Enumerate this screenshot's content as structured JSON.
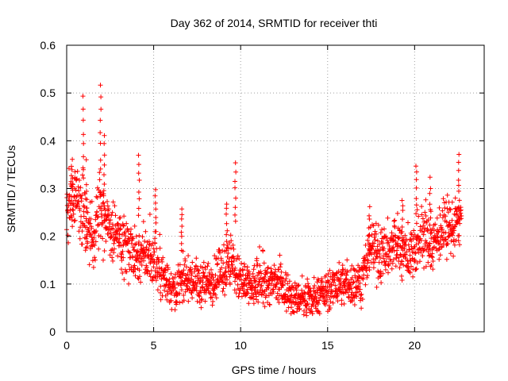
{
  "chart_data": {
    "type": "scatter",
    "title": "Day 362 of 2014, SRMTID for receiver thti",
    "xlabel": "GPS time / hours",
    "ylabel": "SRMTID / TECUs",
    "xlim": [
      0,
      24
    ],
    "ylim": [
      0,
      0.6
    ],
    "x_ticks": [
      0,
      5,
      10,
      15,
      20
    ],
    "x_tick_labels": [
      "0",
      "5",
      "10",
      "15",
      "20"
    ],
    "y_ticks": [
      0,
      0.1,
      0.2,
      0.3,
      0.4,
      0.5,
      0.6
    ],
    "y_tick_labels": [
      "0",
      "0.1",
      "0.2",
      "0.3",
      "0.4",
      "0.5",
      "0.6"
    ],
    "grid": true,
    "marker": "+",
    "color": "#ff0000",
    "series": [
      {
        "name": "SRMTID",
        "trend_x": [
          0,
          0.5,
          1,
          1.5,
          2,
          2.5,
          3,
          3.5,
          4,
          4.5,
          5,
          5.5,
          6,
          6.5,
          7,
          7.5,
          8,
          8.5,
          9,
          9.5,
          10,
          10.5,
          11,
          11.5,
          12,
          12.5,
          13,
          13.5,
          14,
          14.5,
          15,
          15.5,
          16,
          16.5,
          17,
          17.5,
          18,
          18.5,
          19,
          19.5,
          20,
          20.5,
          21,
          21.5,
          22,
          22.5,
          22.7
        ],
        "trend_y": [
          0.25,
          0.28,
          0.24,
          0.19,
          0.26,
          0.21,
          0.19,
          0.17,
          0.16,
          0.16,
          0.15,
          0.12,
          0.09,
          0.1,
          0.11,
          0.1,
          0.1,
          0.11,
          0.13,
          0.14,
          0.1,
          0.09,
          0.1,
          0.1,
          0.1,
          0.09,
          0.07,
          0.07,
          0.06,
          0.08,
          0.08,
          0.1,
          0.1,
          0.1,
          0.11,
          0.18,
          0.16,
          0.17,
          0.18,
          0.16,
          0.17,
          0.2,
          0.18,
          0.21,
          0.21,
          0.23,
          0.25
        ],
        "spread_y": [
          0.06,
          0.06,
          0.07,
          0.06,
          0.07,
          0.05,
          0.05,
          0.05,
          0.05,
          0.05,
          0.05,
          0.04,
          0.04,
          0.04,
          0.04,
          0.04,
          0.04,
          0.04,
          0.05,
          0.05,
          0.04,
          0.04,
          0.04,
          0.04,
          0.04,
          0.04,
          0.03,
          0.03,
          0.03,
          0.03,
          0.03,
          0.04,
          0.04,
          0.04,
          0.04,
          0.05,
          0.05,
          0.05,
          0.05,
          0.05,
          0.05,
          0.05,
          0.05,
          0.05,
          0.05,
          0.05,
          0.05
        ],
        "peaks": [
          {
            "x": 0.3,
            "y": 0.36
          },
          {
            "x": 0.95,
            "y": 0.49
          },
          {
            "x": 1.15,
            "y": 0.31
          },
          {
            "x": 1.95,
            "y": 0.52
          },
          {
            "x": 2.15,
            "y": 0.41
          },
          {
            "x": 4.15,
            "y": 0.37
          },
          {
            "x": 5.1,
            "y": 0.3
          },
          {
            "x": 6.6,
            "y": 0.26
          },
          {
            "x": 9.2,
            "y": 0.27
          },
          {
            "x": 9.7,
            "y": 0.35
          },
          {
            "x": 17.4,
            "y": 0.26
          },
          {
            "x": 19.3,
            "y": 0.28
          },
          {
            "x": 20.1,
            "y": 0.35
          },
          {
            "x": 20.9,
            "y": 0.32
          },
          {
            "x": 22.55,
            "y": 0.37
          }
        ]
      }
    ]
  }
}
